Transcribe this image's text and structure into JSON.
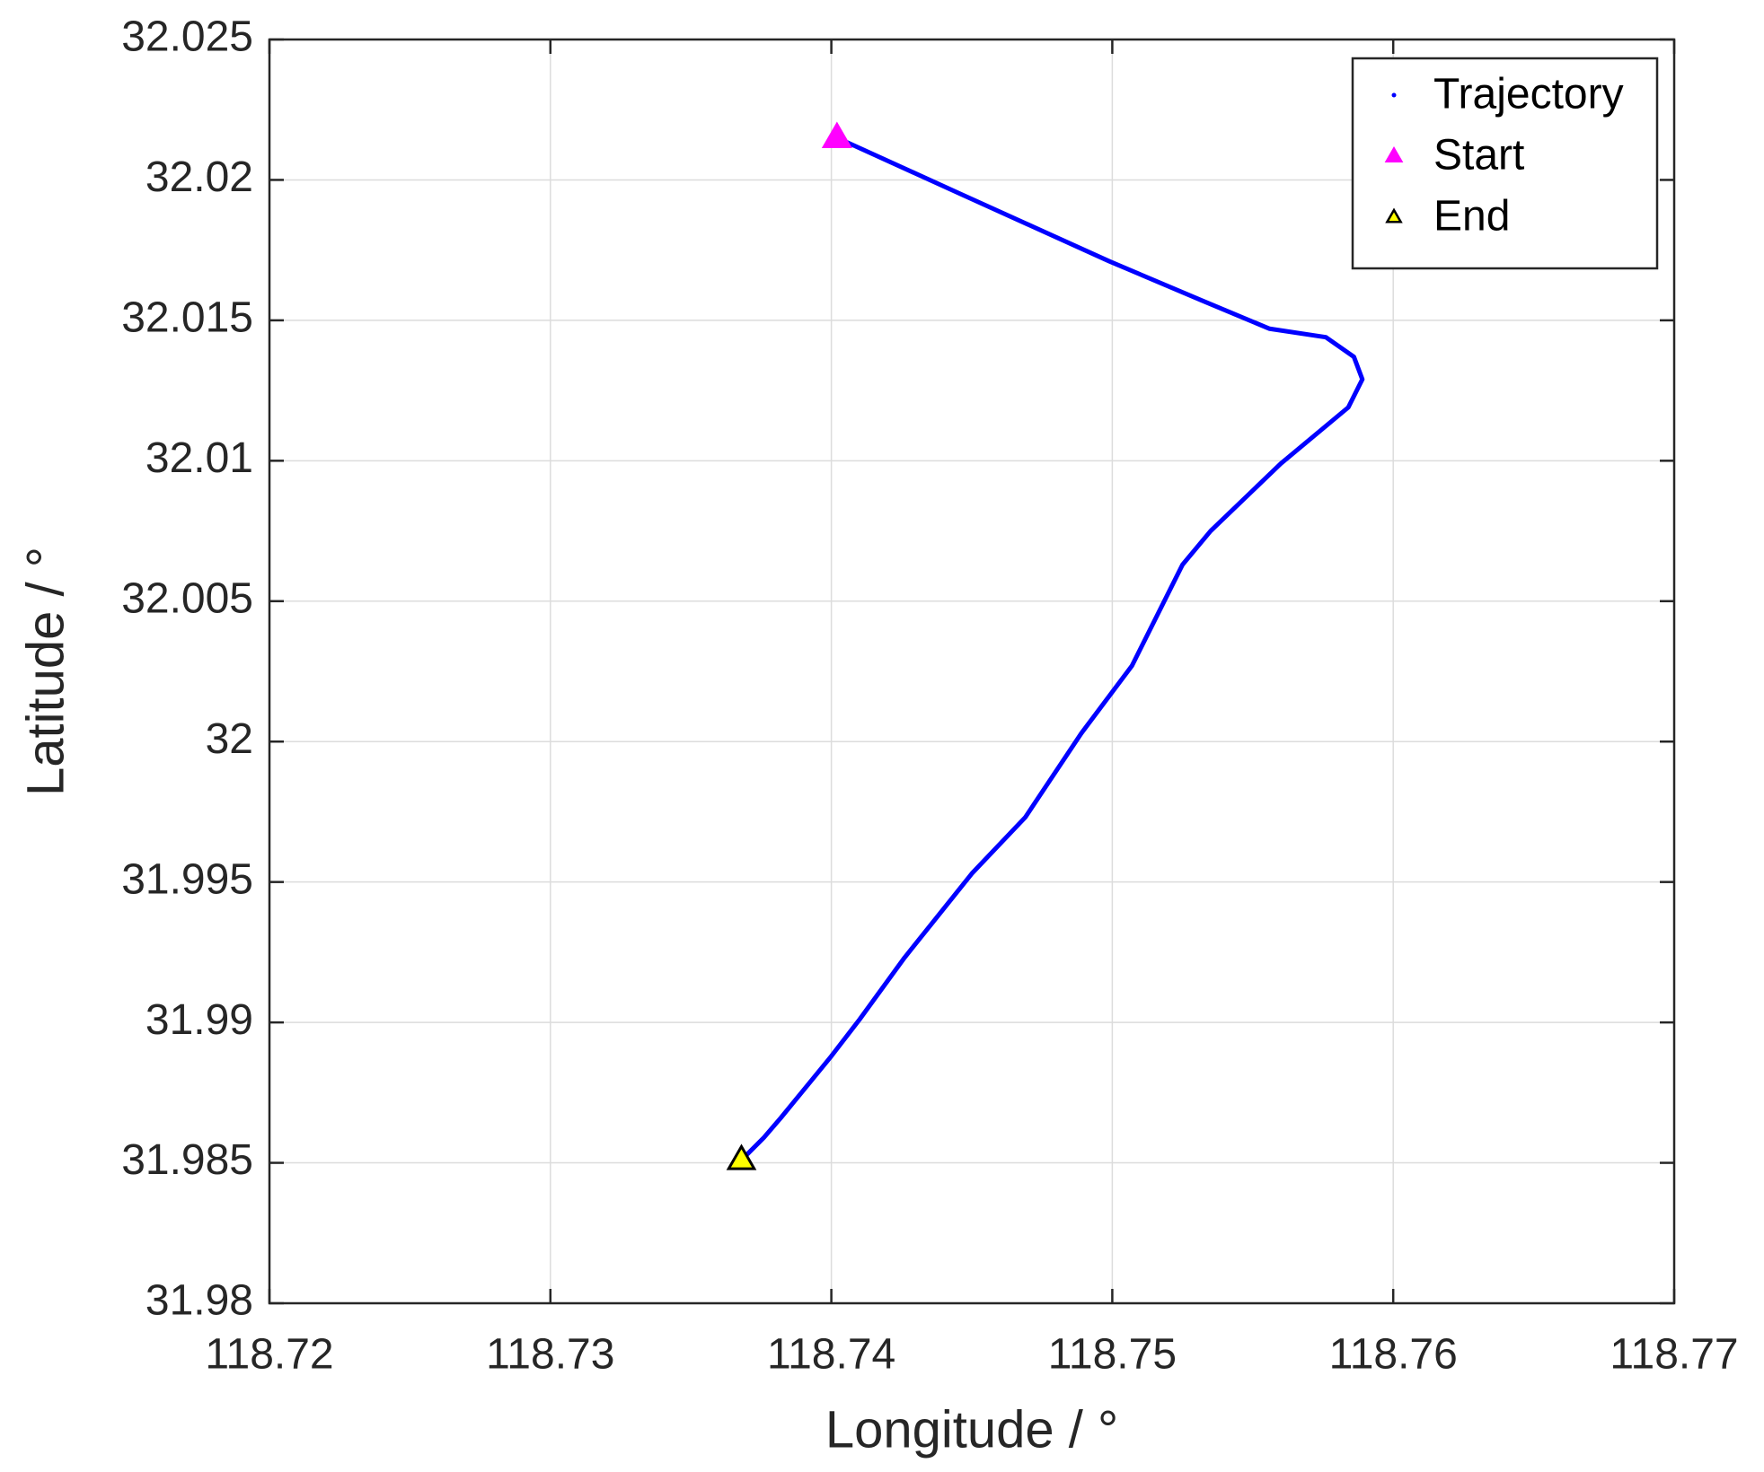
{
  "chart_data": {
    "type": "line",
    "xlabel": "Longitude / °",
    "ylabel": "Latitude / °",
    "xlim": [
      118.72,
      118.77
    ],
    "xticks": [
      118.72,
      118.73,
      118.74,
      118.75,
      118.76,
      118.77
    ],
    "ylim": [
      31.98,
      32.025
    ],
    "yticks": [
      31.98,
      31.985,
      31.99,
      31.995,
      32,
      32.005,
      32.01,
      32.015,
      32.02,
      32.025
    ],
    "grid": true,
    "legend": "upper right",
    "series": [
      {
        "name": "Trajectory",
        "color": "#0000ff",
        "marker": "line",
        "x": [
          118.7402,
          118.7446,
          118.7499,
          118.7532,
          118.7556,
          118.7576,
          118.7586,
          118.7589,
          118.7584,
          118.756,
          118.7535,
          118.7525,
          118.7507,
          118.7489,
          118.7469,
          118.745,
          118.7426,
          118.741,
          118.74,
          118.7382,
          118.7376,
          118.7368
        ],
        "values": [
          32.0215,
          32.0195,
          32.0171,
          32.0157,
          32.0147,
          32.0144,
          32.0137,
          32.0129,
          32.0119,
          32.0099,
          32.0075,
          32.0063,
          32.0027,
          32.0003,
          31.9973,
          31.9953,
          31.9923,
          31.9901,
          31.9888,
          31.9866,
          31.9859,
          31.9851
        ]
      },
      {
        "name": "Start",
        "color": "#ff00ff",
        "marker": "triangle",
        "x": [
          118.7402
        ],
        "values": [
          32.0215
        ]
      },
      {
        "name": "End",
        "color": "#ffff00",
        "marker": "triangle-edged",
        "x": [
          118.7368
        ],
        "values": [
          31.9851
        ]
      }
    ]
  }
}
